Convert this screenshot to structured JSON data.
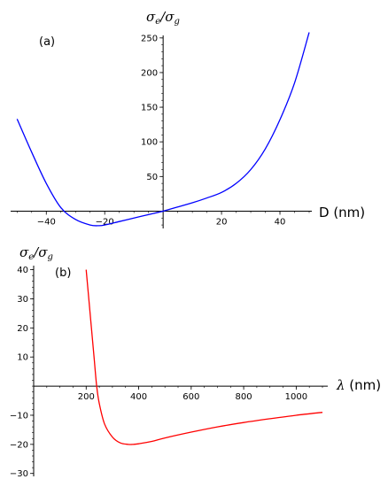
{
  "chart_data": [
    {
      "type": "line",
      "panel_label": "(a)",
      "ylabel": {
        "main": "σ",
        "sub1": "e",
        "slash": "/",
        "main2": "σ",
        "sub2": "g"
      },
      "xlabel": "D (nm)",
      "xlim": [
        -51,
        50
      ],
      "ylim": [
        -25,
        260
      ],
      "xticks": [
        -40,
        -20,
        20,
        40
      ],
      "xtick_labels": [
        "−40",
        "−20",
        "20",
        "40"
      ],
      "yticks": [
        50,
        100,
        150,
        200,
        250
      ],
      "ytick_labels": [
        "50",
        "100",
        "150",
        "200",
        "250"
      ],
      "series": [
        {
          "color": "#0000ff",
          "x": [
            -50,
            -45,
            -40,
            -35,
            -30,
            -25,
            -22,
            -20,
            -15,
            -10,
            -5,
            0,
            5,
            10,
            15,
            20,
            25,
            30,
            35,
            40,
            45,
            50
          ],
          "y": [
            133,
            85,
            40,
            5,
            -12,
            -20,
            -21,
            -20,
            -15,
            -10,
            -5,
            0,
            6,
            12,
            19,
            27,
            40,
            60,
            90,
            132,
            185,
            258
          ]
        }
      ]
    },
    {
      "type": "line",
      "panel_label": "(b)",
      "ylabel": {
        "main": "σ",
        "sub1": "e",
        "slash": "/",
        "main2": "σ",
        "sub2": "g"
      },
      "xlabel": {
        "symbol": "λ",
        "unit": " (nm)"
      },
      "xlim": [
        0,
        1100
      ],
      "ylim": [
        -31,
        42
      ],
      "xticks": [
        200,
        400,
        600,
        800,
        1000
      ],
      "xtick_labels": [
        "200",
        "400",
        "600",
        "800",
        "1000"
      ],
      "yticks": [
        -30,
        -20,
        -10,
        10,
        20,
        30,
        40
      ],
      "ytick_labels": [
        "−30",
        "−20",
        "−10",
        "10",
        "20",
        "30",
        "40"
      ],
      "series": [
        {
          "color": "#ff0000",
          "x": [
            200,
            210,
            220,
            230,
            240,
            250,
            270,
            300,
            330,
            360,
            380,
            400,
            450,
            500,
            600,
            700,
            800,
            900,
            1000,
            1100
          ],
          "y": [
            40,
            30,
            20,
            10,
            0,
            -6,
            -13,
            -17.5,
            -19.5,
            -20,
            -20,
            -19.8,
            -19,
            -17.8,
            -15.8,
            -14,
            -12.5,
            -11.2,
            -10,
            -9
          ]
        }
      ]
    }
  ]
}
